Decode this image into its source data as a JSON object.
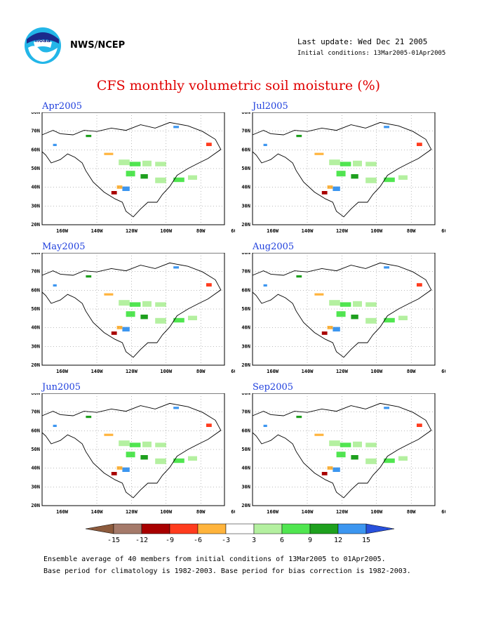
{
  "header": {
    "org_label": "NWS/NCEP",
    "last_update": "Last update: Wed Dec 21 2005",
    "initial_conditions": "Initial conditions: 13Mar2005-01Apr2005",
    "logo_text": "noaa",
    "logo_icon": "noaa-logo-icon"
  },
  "title": "CFS monthly volumetric soil moisture (%)",
  "panels": [
    {
      "month": "Apr2005"
    },
    {
      "month": "Jul2005"
    },
    {
      "month": "May2005"
    },
    {
      "month": "Aug2005"
    },
    {
      "month": "Jun2005"
    },
    {
      "month": "Sep2005"
    }
  ],
  "map_axes": {
    "lat_labels": [
      "80N",
      "70N",
      "60N",
      "50N",
      "40N",
      "30N",
      "20N"
    ],
    "lon_labels": [
      "160W",
      "140W",
      "120W",
      "100W",
      "80W",
      "60W"
    ]
  },
  "colorbar": {
    "labels": [
      "-15",
      "-12",
      "-9",
      "-6",
      "-3",
      "3",
      "6",
      "9",
      "12",
      "15"
    ],
    "colors": [
      "#8c5a3c",
      "#a57a6a",
      "#a80000",
      "#ff3c1e",
      "#ffb43c",
      "#ffffff",
      "#b4f0a0",
      "#50e650",
      "#1ea01e",
      "#3c96f0",
      "#2850dc"
    ]
  },
  "footer": {
    "line1": "Ensemble average of 40 members from initial conditions of 13Mar2005 to 01Apr2005.",
    "line2": "Base period for climatology is 1982-2003. Base period for bias correction is 1982-2003."
  }
}
